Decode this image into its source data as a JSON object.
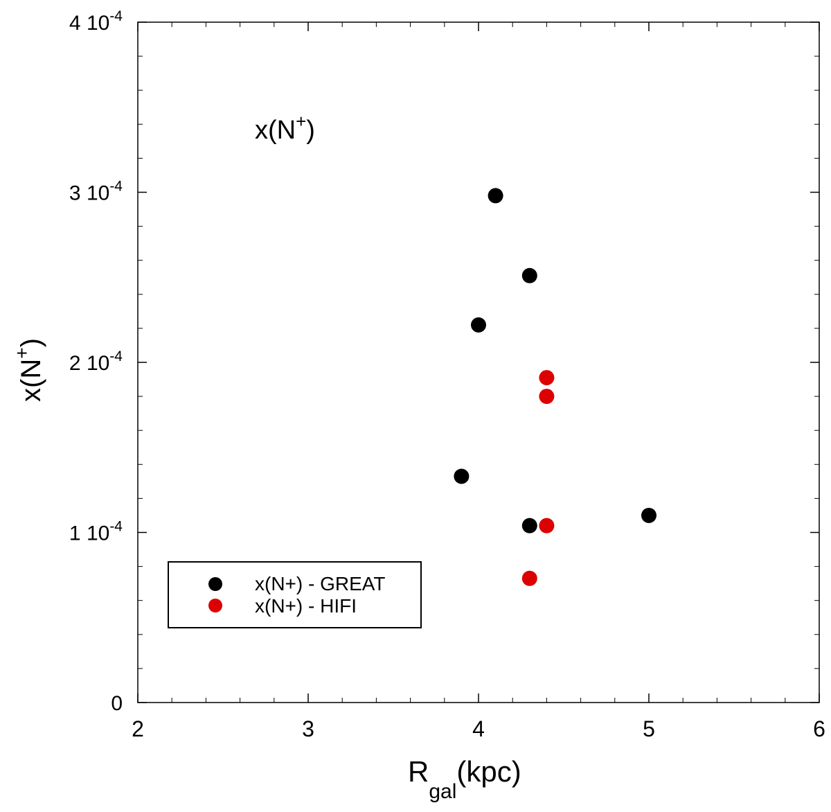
{
  "chart_data": {
    "type": "scatter",
    "title": "",
    "annotation": {
      "base": "x(N",
      "sup": "+",
      "close": ")"
    },
    "xlabel": {
      "main": "R",
      "sub": "gal",
      "rest": "(kpc)"
    },
    "ylabel": {
      "base": "x(N",
      "sup": "+",
      "close": ")"
    },
    "xlim": [
      2,
      6
    ],
    "ylim": [
      0,
      0.0004
    ],
    "x_ticks": [
      {
        "value": 2,
        "label": "2"
      },
      {
        "value": 3,
        "label": "3"
      },
      {
        "value": 4,
        "label": "4"
      },
      {
        "value": 5,
        "label": "5"
      },
      {
        "value": 6,
        "label": "6"
      }
    ],
    "x_minor_step": 0.2,
    "y_ticks": [
      {
        "value": 0,
        "mant": "0",
        "exp": ""
      },
      {
        "value": 0.0001,
        "mant": "1 10",
        "exp": "-4"
      },
      {
        "value": 0.0002,
        "mant": "2 10",
        "exp": "-4"
      },
      {
        "value": 0.0003,
        "mant": "3 10",
        "exp": "-4"
      },
      {
        "value": 0.0004,
        "mant": "4 10",
        "exp": "-4"
      }
    ],
    "y_minor_step": 2e-05,
    "grid": false,
    "legend_position": "bottom-left",
    "series": [
      {
        "name": "x(N+) - GREAT",
        "color": "#000000",
        "points": [
          {
            "x": 4.1,
            "y": 0.000298
          },
          {
            "x": 4.3,
            "y": 0.000251
          },
          {
            "x": 4.0,
            "y": 0.000222
          },
          {
            "x": 3.9,
            "y": 0.000133
          },
          {
            "x": 4.3,
            "y": 0.000104
          },
          {
            "x": 5.0,
            "y": 0.00011
          }
        ]
      },
      {
        "name": "x(N+) - HIFI",
        "color": "#dd0000",
        "points": [
          {
            "x": 4.4,
            "y": 0.000191
          },
          {
            "x": 4.4,
            "y": 0.00018
          },
          {
            "x": 4.4,
            "y": 0.000104
          },
          {
            "x": 4.3,
            "y": 7.3e-05
          }
        ]
      }
    ]
  }
}
